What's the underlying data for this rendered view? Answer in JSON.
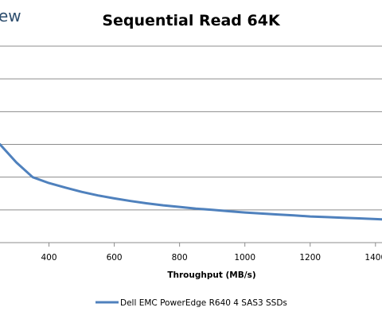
{
  "brand": {
    "text": "ew"
  },
  "chart_data": {
    "type": "line",
    "title": "Sequential Read 64K",
    "xlabel": "Throughput (MB/s)",
    "ylabel": "",
    "xlim": [
      250,
      1420
    ],
    "ylim": [
      0,
      6
    ],
    "xticks": [
      400,
      600,
      800,
      1000,
      1200,
      1400
    ],
    "xtick_labels": [
      "400",
      "600",
      "800",
      "1000",
      "1200",
      "1400"
    ],
    "grid": true,
    "legend": "bottom",
    "series": [
      {
        "name": "Dell EMC PowerEdge R640 4 SAS3 SSDs",
        "color": "#4f81bd",
        "x": [
          250,
          300,
          350,
          400,
          450,
          500,
          550,
          600,
          650,
          700,
          750,
          800,
          850,
          900,
          950,
          1000,
          1050,
          1100,
          1150,
          1200,
          1250,
          1300,
          1350,
          1400,
          1420
        ],
        "y": [
          3.0,
          2.45,
          2.0,
          1.82,
          1.68,
          1.55,
          1.44,
          1.35,
          1.27,
          1.2,
          1.14,
          1.09,
          1.04,
          1.0,
          0.96,
          0.92,
          0.89,
          0.86,
          0.83,
          0.8,
          0.78,
          0.76,
          0.74,
          0.72,
          0.71
        ]
      }
    ]
  }
}
